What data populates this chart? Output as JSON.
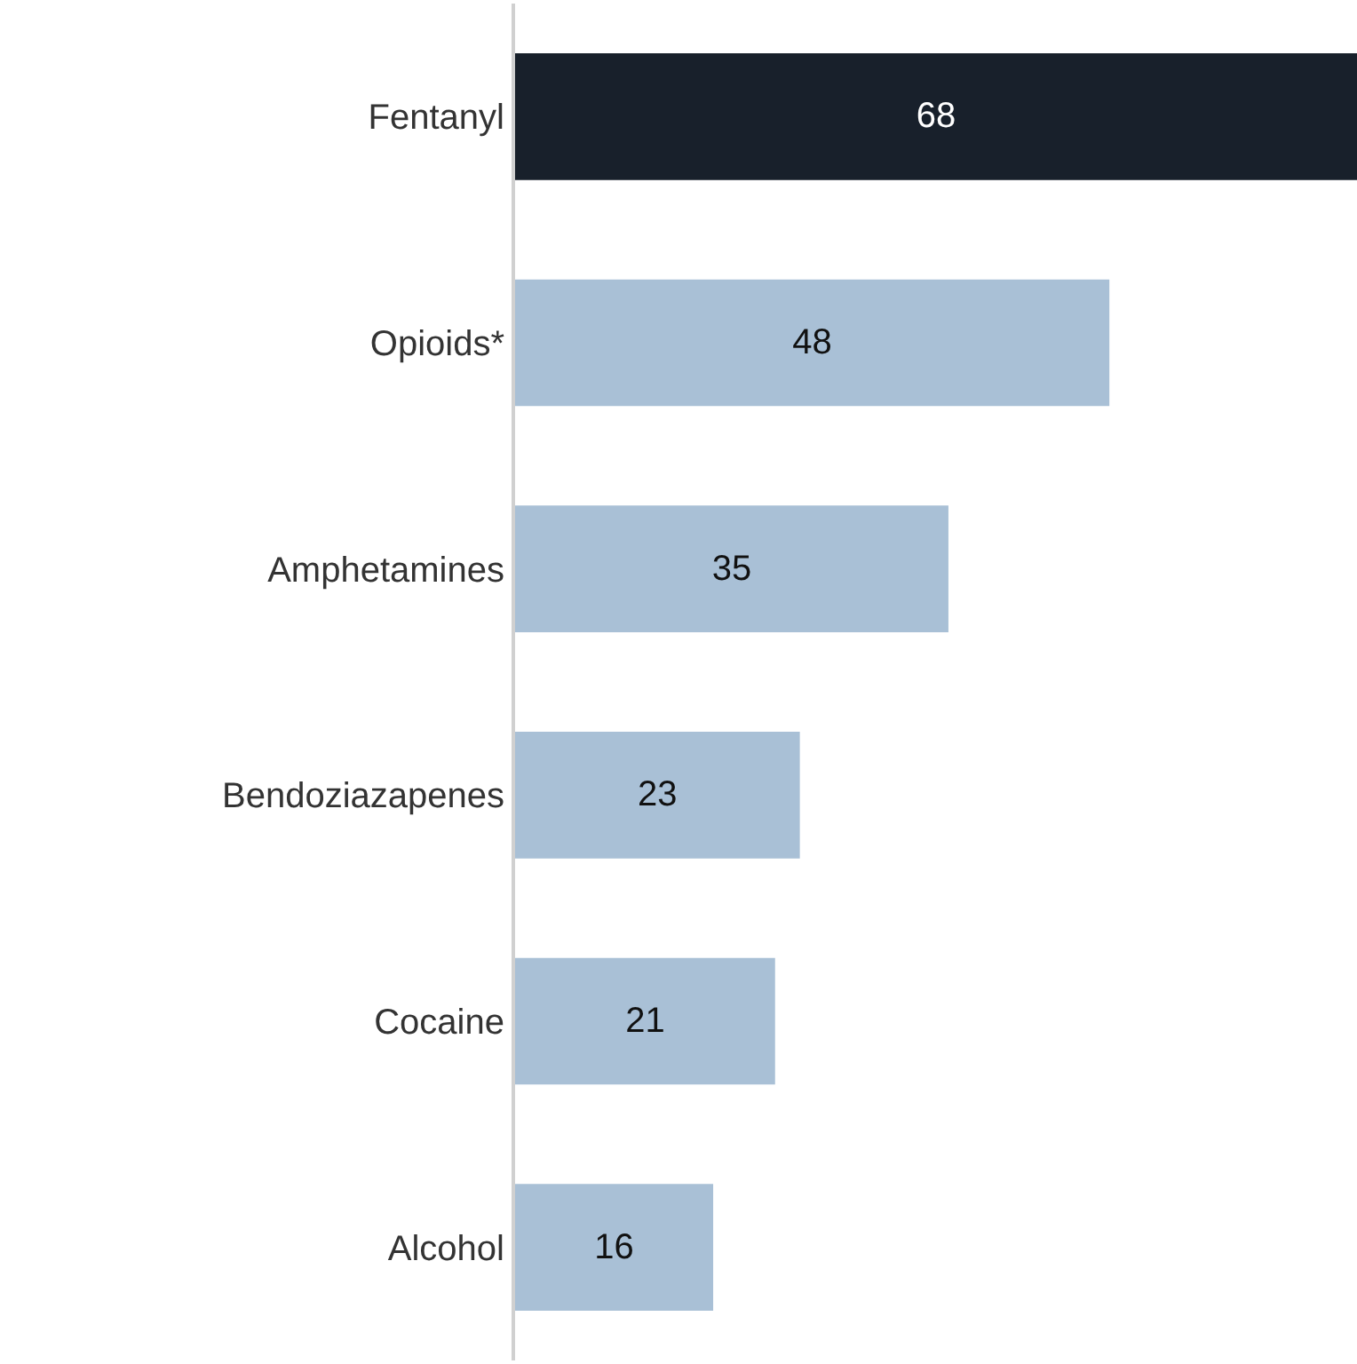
{
  "chart_data": {
    "type": "bar",
    "orientation": "horizontal",
    "categories": [
      "Fentanyl",
      "Opioids*",
      "Amphetamines",
      "Bendoziazapenes",
      "Cocaine",
      "Alcohol"
    ],
    "values": [
      68,
      48,
      35,
      23,
      21,
      16
    ],
    "colors": [
      "#18202b",
      "#a9c0d6",
      "#a9c0d6",
      "#a9c0d6",
      "#a9c0d6",
      "#a9c0d6"
    ],
    "data_labels": true
  }
}
